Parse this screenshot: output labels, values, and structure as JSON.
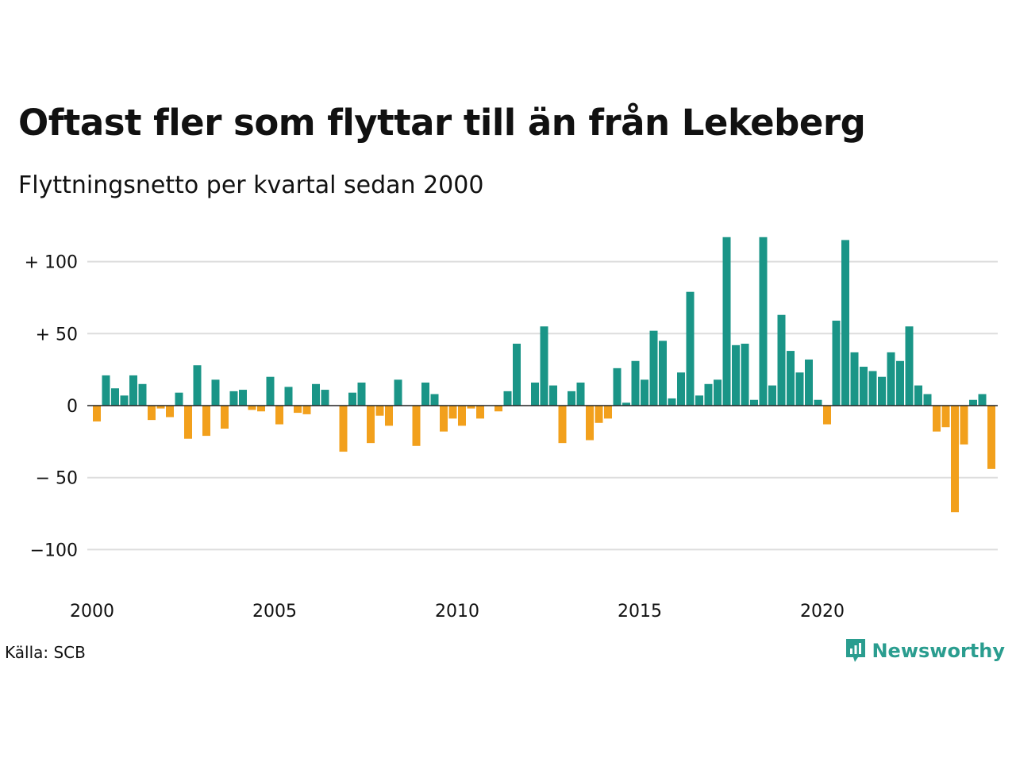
{
  "title": "Oftast fler som flyttar till än från Lekeberg",
  "subtitle": "Flyttningsnetto per kvartal sedan 2000",
  "source": "Källa: SCB",
  "brand": "Newsworthy",
  "colors": {
    "positive": "#1a9587",
    "negative": "#f2a01c",
    "grid": "#dddddd",
    "zero": "#222222"
  },
  "chart_data": {
    "type": "bar",
    "x_start": "2000 Q1",
    "frequency": "quarterly",
    "x_ticks": [
      "2000",
      "2005",
      "2010",
      "2015",
      "2020"
    ],
    "y_ticks": [
      {
        "value": 100,
        "label": "+ 100"
      },
      {
        "value": 50,
        "label": "+  50"
      },
      {
        "value": 0,
        "label": "0"
      },
      {
        "value": -50,
        "label": "− 50"
      },
      {
        "value": -100,
        "label": "−100"
      }
    ],
    "ylim": [
      -122,
      118
    ],
    "values": [
      -11,
      21,
      12,
      7,
      21,
      15,
      -10,
      -2,
      -8,
      9,
      -23,
      28,
      -21,
      18,
      -16,
      10,
      11,
      -3,
      -4,
      20,
      -13,
      13,
      -5,
      -6,
      15,
      11,
      0,
      -32,
      9,
      16,
      -26,
      -7,
      -14,
      18,
      0,
      -28,
      16,
      8,
      -18,
      -9,
      -14,
      -2,
      -9,
      0,
      -4,
      10,
      43,
      0,
      16,
      55,
      14,
      -26,
      10,
      16,
      -24,
      -12,
      -9,
      26,
      2,
      31,
      18,
      52,
      45,
      5,
      23,
      79,
      7,
      15,
      18,
      117,
      42,
      43,
      4,
      117,
      14,
      63,
      38,
      23,
      32,
      4,
      -13,
      59,
      115,
      37,
      27,
      24,
      20,
      37,
      31,
      55,
      14,
      8,
      -18,
      -15,
      -74,
      -27,
      4,
      8,
      -44
    ]
  }
}
